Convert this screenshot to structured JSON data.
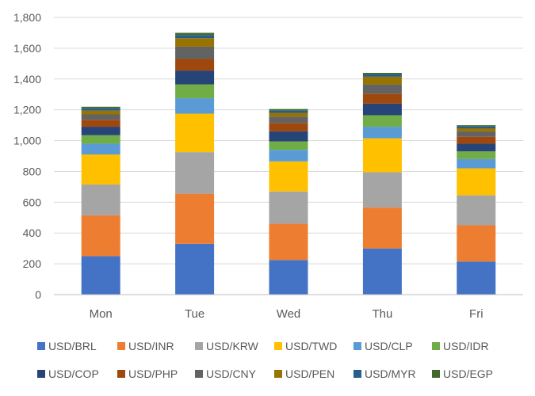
{
  "chart_data": {
    "type": "bar",
    "stacked": true,
    "title": "",
    "xlabel": "",
    "ylabel": "",
    "ylim": [
      0,
      1800
    ],
    "yticks": [
      0,
      200,
      400,
      600,
      800,
      1000,
      1200,
      1400,
      1600,
      1800
    ],
    "ytick_labels": [
      "0",
      "200",
      "400",
      "600",
      "800",
      "1,000",
      "1,200",
      "1,400",
      "1,600",
      "1,800"
    ],
    "grid": true,
    "legend_position": "bottom",
    "categories": [
      "Mon",
      "Tue",
      "Wed",
      "Thu",
      "Fri"
    ],
    "series": [
      {
        "name": "USD/BRL",
        "color": "#4472C4",
        "values": [
          250,
          330,
          225,
          300,
          215
        ]
      },
      {
        "name": "USD/INR",
        "color": "#ED7D31",
        "values": [
          265,
          325,
          235,
          265,
          235
        ]
      },
      {
        "name": "USD/KRW",
        "color": "#A5A5A5",
        "values": [
          200,
          270,
          210,
          230,
          195
        ]
      },
      {
        "name": "USD/TWD",
        "color": "#FFC000",
        "values": [
          195,
          250,
          195,
          220,
          175
        ]
      },
      {
        "name": "USD/CLP",
        "color": "#5B9BD5",
        "values": [
          70,
          100,
          75,
          75,
          60
        ]
      },
      {
        "name": "USD/IDR",
        "color": "#70AD47",
        "values": [
          55,
          90,
          55,
          75,
          50
        ]
      },
      {
        "name": "USD/COP",
        "color": "#264478",
        "values": [
          55,
          90,
          65,
          75,
          50
        ]
      },
      {
        "name": "USD/PHP",
        "color": "#9E480E",
        "values": [
          45,
          75,
          55,
          65,
          45
        ]
      },
      {
        "name": "USD/CNY",
        "color": "#636363",
        "values": [
          35,
          80,
          40,
          60,
          35
        ]
      },
      {
        "name": "USD/PEN",
        "color": "#997300",
        "values": [
          25,
          55,
          25,
          50,
          20
        ]
      },
      {
        "name": "USD/MYR",
        "color": "#255E91",
        "values": [
          15,
          20,
          15,
          15,
          12
        ]
      },
      {
        "name": "USD/EGP",
        "color": "#43682B",
        "values": [
          10,
          15,
          10,
          10,
          8
        ]
      }
    ],
    "colors": {
      "grid": "#D9D9D9",
      "axis": "#BFBFBF",
      "text": "#595959"
    }
  }
}
